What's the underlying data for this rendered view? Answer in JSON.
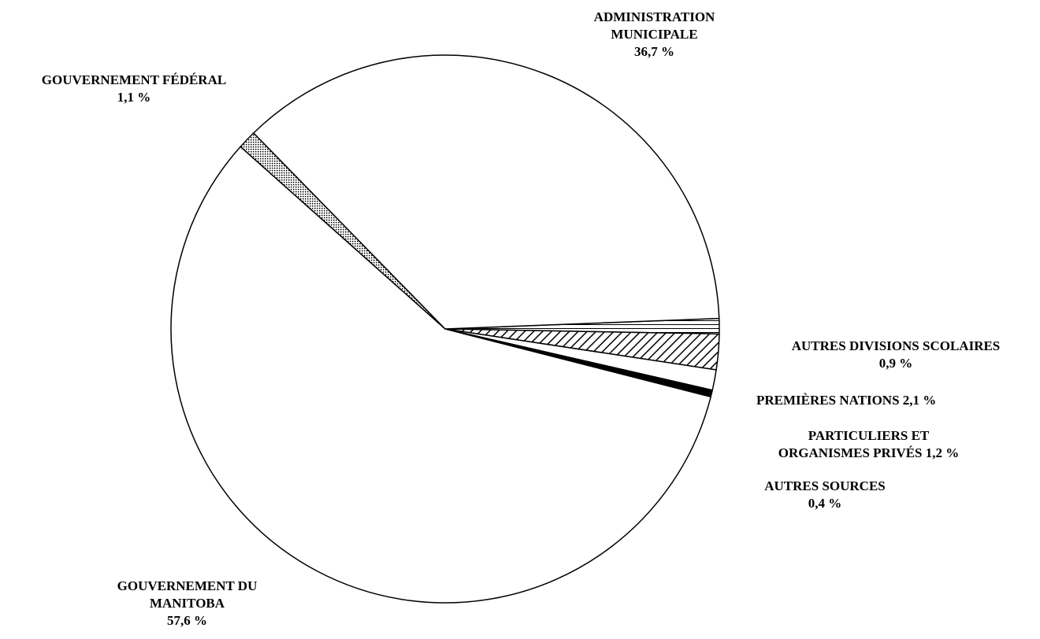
{
  "chart_data": {
    "type": "pie",
    "start_angle_deg": -2.2,
    "direction": "clockwise",
    "slices": [
      {
        "key": "autres_divisions",
        "lines": [
          "AUTRES DIVISIONS SCOLAIRES",
          "0,9 %"
        ],
        "value": 0.9,
        "pattern": "horizontal"
      },
      {
        "key": "premieres_nations",
        "lines": [
          "PREMIÈRES NATIONS 2,1 %"
        ],
        "value": 2.1,
        "pattern": "diagonal"
      },
      {
        "key": "particuliers",
        "lines": [
          "PARTICULIERS ET",
          "ORGANISMES PRIVÉS 1,2 %"
        ],
        "value": 1.2,
        "pattern": "white"
      },
      {
        "key": "autres_sources",
        "lines": [
          "AUTRES SOURCES",
          "0,4 %"
        ],
        "value": 0.4,
        "pattern": "solid"
      },
      {
        "key": "gouv_manitoba",
        "lines": [
          "GOUVERNEMENT DU",
          "MANITOBA",
          "57,6 %"
        ],
        "value": 57.6,
        "pattern": "white"
      },
      {
        "key": "gouv_federal",
        "lines": [
          "GOUVERNEMENT FÉDÉRAL",
          "1,1 %"
        ],
        "value": 1.1,
        "pattern": "dots"
      },
      {
        "key": "admin_municipale",
        "lines": [
          "ADMINISTRATION",
          "MUNICIPALE",
          "36,7 %"
        ],
        "value": 36.7,
        "pattern": "white"
      }
    ]
  }
}
